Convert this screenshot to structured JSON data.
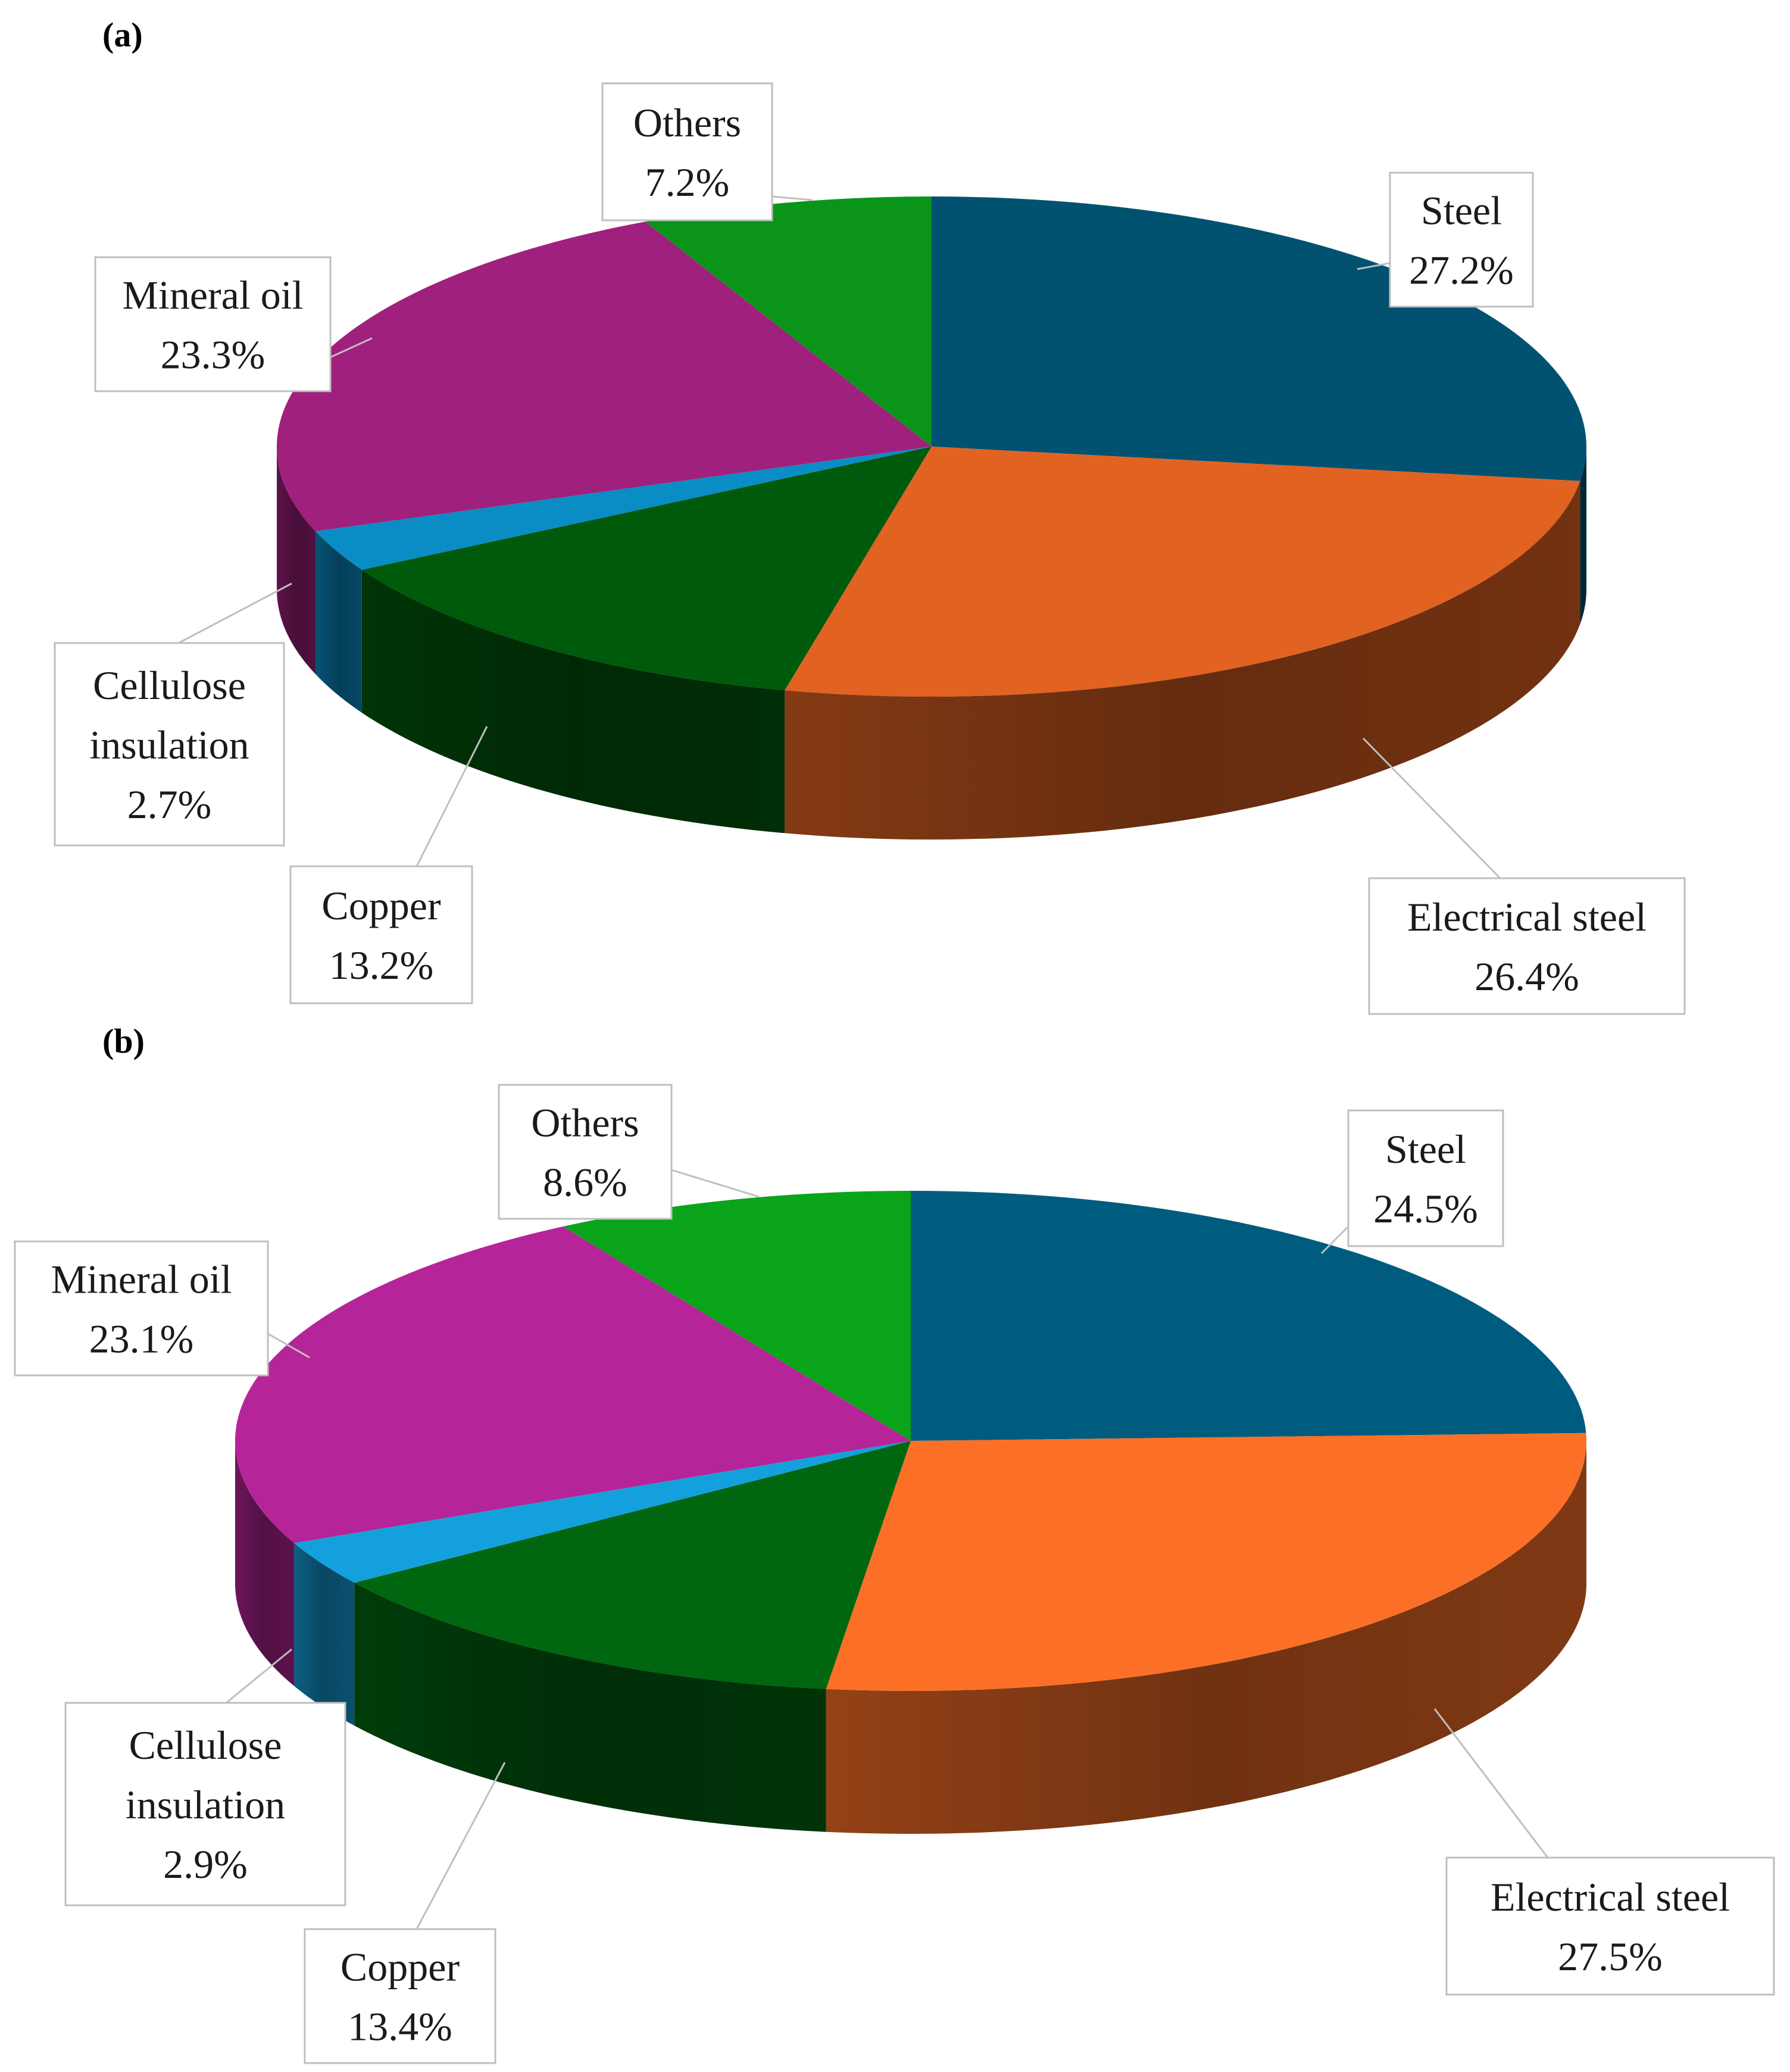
{
  "chart_data": [
    {
      "type": "pie",
      "panel_label": "(a)",
      "categories": [
        "Steel",
        "Electrical steel",
        "Copper",
        "Cellulose insulation",
        "Mineral oil",
        "Others"
      ],
      "values": [
        27.2,
        26.4,
        13.2,
        2.7,
        23.3,
        7.2
      ],
      "value_labels": [
        "27.2%",
        "26.4%",
        "13.2%",
        "2.7%",
        "23.3%",
        "7.2%"
      ],
      "colors": [
        "#015270",
        "#E26222",
        "#005A0C",
        "#0A8CC4",
        "#A0207E",
        "#0A951A"
      ],
      "style": "3d-pie",
      "legend": "none"
    },
    {
      "type": "pie",
      "panel_label": "(b)",
      "categories": [
        "Steel",
        "Electrical steel",
        "Copper",
        "Cellulose insulation",
        "Mineral oil",
        "Others"
      ],
      "values": [
        24.5,
        27.5,
        13.4,
        2.9,
        23.1,
        8.6
      ],
      "value_labels": [
        "24.5%",
        "27.5%",
        "13.4%",
        "2.9%",
        "23.1%",
        "8.6%"
      ],
      "colors": [
        "#005C7E",
        "#FB7026",
        "#006610",
        "#14A0DC",
        "#B6249A",
        "#0AA41A"
      ],
      "style": "3d-pie",
      "legend": "none"
    }
  ]
}
